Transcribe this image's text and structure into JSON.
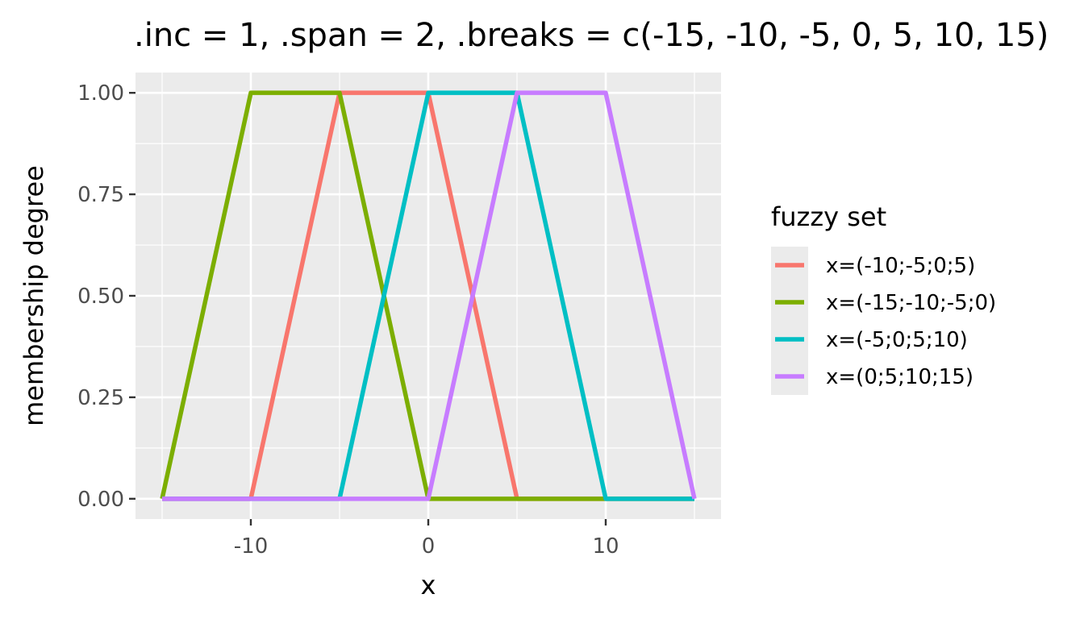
{
  "chart_data": {
    "type": "line",
    "title": ".inc = 1, .span = 2, .breaks = c(-15, -10, -5, 0, 5, 10, 15)",
    "xlabel": "x",
    "ylabel": "membership degree",
    "xlim": [
      -16.5,
      16.5
    ],
    "ylim": [
      -0.05,
      1.05
    ],
    "x_ticks": [
      -10,
      0,
      10
    ],
    "x_tick_labels": [
      "-10",
      "0",
      "10"
    ],
    "x_minor_ticks": [
      -15,
      -5,
      5,
      15
    ],
    "y_ticks": [
      0,
      0.25,
      0.5,
      0.75,
      1
    ],
    "y_tick_labels": [
      "0.00",
      "0.25",
      "0.50",
      "0.75",
      "1.00"
    ],
    "y_minor_ticks": [
      0.125,
      0.375,
      0.625,
      0.875
    ],
    "grid": true,
    "background": "#ebebeb",
    "legend": {
      "title": "fuzzy set",
      "placement": "right"
    },
    "series": [
      {
        "name": "x=(-10;-5;0;5)",
        "color": "#F8766D",
        "x": [
          -15,
          -10,
          -5,
          0,
          5,
          10,
          15
        ],
        "y": [
          0,
          0,
          1,
          1,
          0,
          0,
          0
        ]
      },
      {
        "name": "x=(-15;-10;-5;0)",
        "color": "#7CAE00",
        "x": [
          -15,
          -10,
          -5,
          0,
          5,
          10,
          15
        ],
        "y": [
          0,
          1,
          1,
          0,
          0,
          0,
          0
        ]
      },
      {
        "name": "x=(-5;0;5;10)",
        "color": "#00BFC4",
        "x": [
          -15,
          -10,
          -5,
          0,
          5,
          10,
          15
        ],
        "y": [
          0,
          0,
          0,
          1,
          1,
          0,
          0
        ]
      },
      {
        "name": "x=(0;5;10;15)",
        "color": "#C77CFF",
        "x": [
          -15,
          -10,
          -5,
          0,
          5,
          10,
          15
        ],
        "y": [
          0,
          0,
          0,
          0,
          1,
          1,
          0
        ]
      }
    ]
  }
}
